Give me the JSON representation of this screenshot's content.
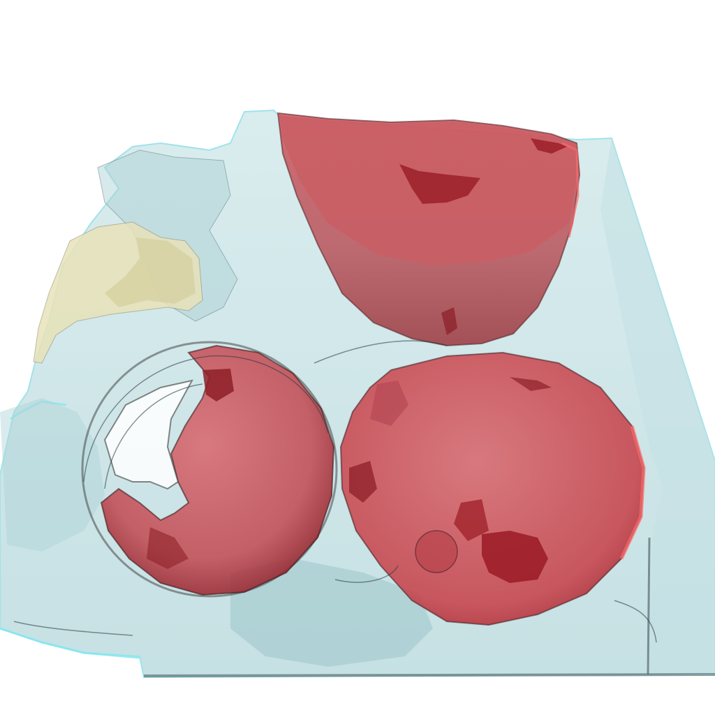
{
  "image": {
    "kind": "3d-volume-rendering",
    "background_color": "#ffffff",
    "colors": {
      "tissue_volume": "#bfe0e3",
      "tissue_edge": "#7fd9e6",
      "tissue_shadow": "#9fc9cd",
      "lobe_red": "#c84a52",
      "lobe_red_dark": "#8e1f28",
      "lobe_red_highlight": "#ff6a6a",
      "yellow_region": "#e8e2b8",
      "contour_line": "#2d3c40"
    },
    "objects": [
      {
        "name": "translucent-tissue-block",
        "color": "tissue_volume"
      },
      {
        "name": "red-lobe-top",
        "color": "lobe_red"
      },
      {
        "name": "red-sphere-left",
        "color": "lobe_red"
      },
      {
        "name": "red-sphere-right",
        "color": "lobe_red"
      },
      {
        "name": "yellow-region",
        "color": "yellow_region"
      }
    ]
  }
}
